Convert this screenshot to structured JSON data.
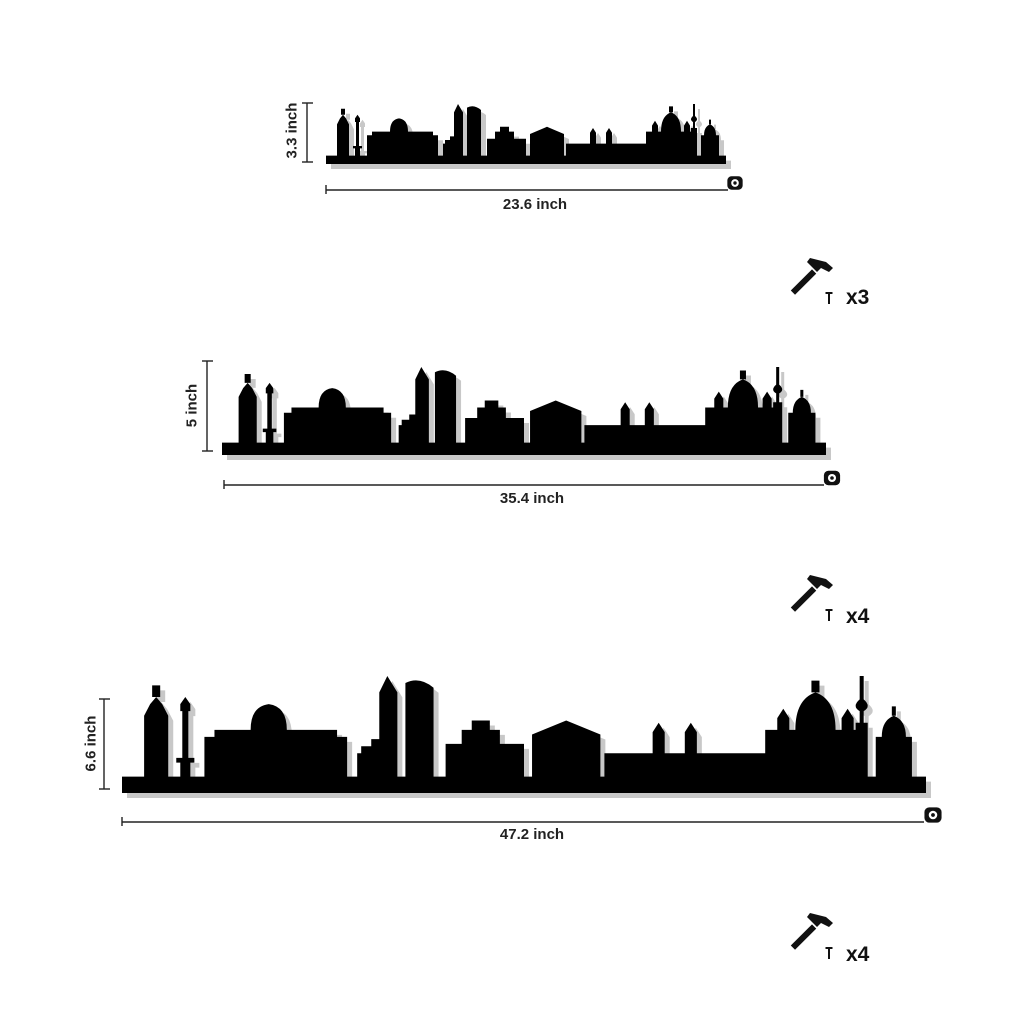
{
  "variants": [
    {
      "height_label": "3.3 inch",
      "width_label": "23.6 inch",
      "nail_count": "x3"
    },
    {
      "height_label": "5 inch",
      "width_label": "35.4 inch",
      "nail_count": "x4"
    },
    {
      "height_label": "6.6 inch",
      "width_label": "47.2 inch",
      "nail_count": "x4"
    }
  ],
  "icons": {
    "tape": "tape-measure-icon",
    "hammer": "hammer-icon",
    "nail": "nail-icon"
  },
  "colors": {
    "silhouette": "#000000",
    "shadow": "#9a9a9a",
    "text": "#222222"
  }
}
